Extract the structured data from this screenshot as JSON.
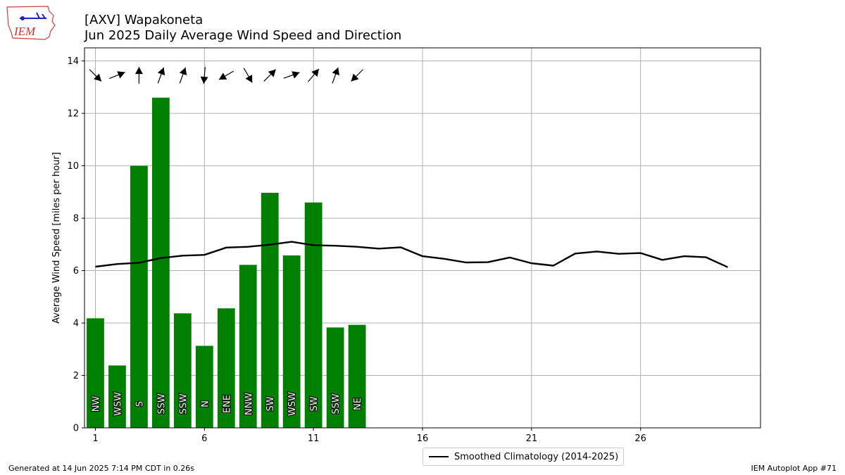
{
  "logo": {
    "text": "IEM"
  },
  "header": {
    "title_line1": "[AXV] Wapakoneta",
    "title_line2": "Jun 2025 Daily Average Wind Speed and Direction"
  },
  "footer": {
    "generated": "Generated at 14 Jun 2025 7:14 PM CDT in 0.26s",
    "app": "IEM Autoplot App #71"
  },
  "legend": {
    "label": "Smoothed Climatology (2014-2025)"
  },
  "colors": {
    "bar": "#008000",
    "climatology": "#000000",
    "grid": "#b0b0b0"
  },
  "chart_data": {
    "type": "bar",
    "title": "[AXV] Wapakoneta\nJun 2025 Daily Average Wind Speed and Direction",
    "ylabel": "Average Wind Speed [miles per hour]",
    "xlabel": "",
    "xlim": [
      0.5,
      31.5
    ],
    "ylim": [
      0,
      14.5
    ],
    "x_ticks": [
      1,
      6,
      11,
      16,
      21,
      26
    ],
    "y_ticks": [
      0,
      2,
      4,
      6,
      8,
      10,
      12,
      14
    ],
    "grid": true,
    "legend_position": "bottom-center, below axes",
    "series": [
      {
        "kind": "bar",
        "days": [
          1,
          2,
          3,
          4,
          5,
          6,
          7,
          8,
          9,
          10,
          11,
          12,
          13
        ],
        "values": [
          4.18,
          2.38,
          10.0,
          12.6,
          4.37,
          3.13,
          4.56,
          6.22,
          8.97,
          6.58,
          8.6,
          3.83,
          3.93
        ],
        "direction_labels": [
          "NW",
          "WSW",
          "S",
          "SSW",
          "SSW",
          "N",
          "ENE",
          "NNW",
          "SW",
          "WSW",
          "SW",
          "SSW",
          "NE"
        ],
        "direction_degrees": [
          315,
          248,
          180,
          200,
          200,
          5,
          60,
          330,
          225,
          250,
          220,
          200,
          45
        ]
      },
      {
        "kind": "line",
        "name": "Smoothed Climatology (2014-2025)",
        "days": [
          1,
          2,
          3,
          4,
          5,
          6,
          7,
          8,
          9,
          10,
          11,
          12,
          13,
          14,
          15,
          16,
          17,
          18,
          19,
          20,
          21,
          22,
          23,
          24,
          25,
          26,
          27,
          28,
          29,
          30
        ],
        "values": [
          6.15,
          6.25,
          6.3,
          6.48,
          6.57,
          6.6,
          6.88,
          6.91,
          6.99,
          7.1,
          6.97,
          6.95,
          6.91,
          6.84,
          6.89,
          6.55,
          6.45,
          6.31,
          6.32,
          6.5,
          6.28,
          6.19,
          6.65,
          6.73,
          6.64,
          6.67,
          6.41,
          6.55,
          6.51,
          6.13
        ]
      }
    ]
  }
}
